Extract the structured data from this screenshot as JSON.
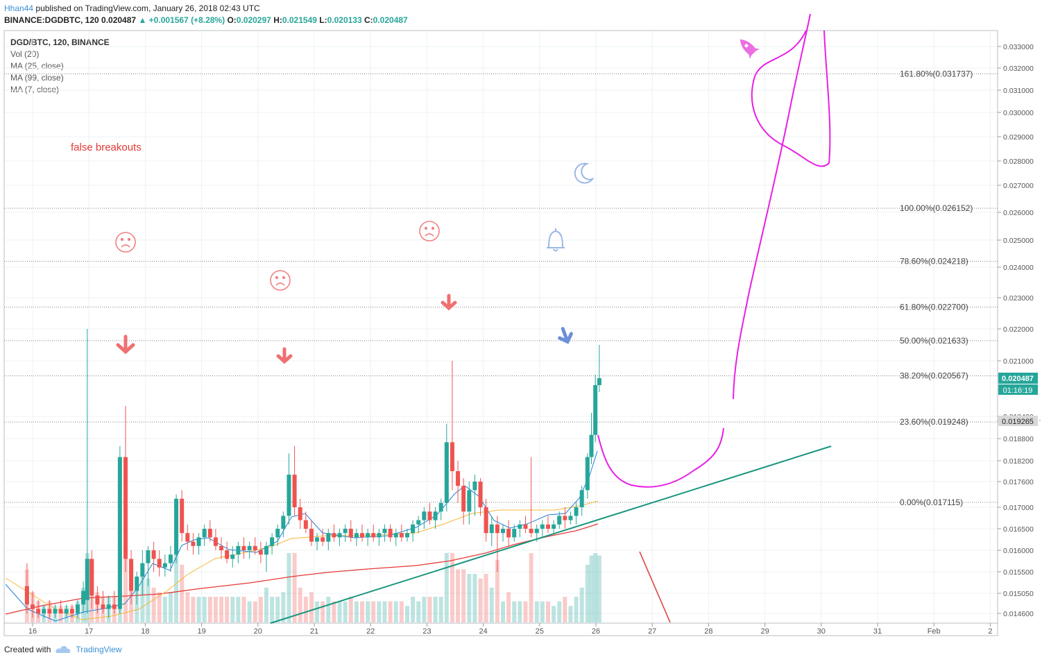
{
  "header": {
    "user": "Hhan44",
    "published": "published on TradingView.com, January 26, 2018 02:43 UTC",
    "symbol": "BINANCE:DGDBTC, 120",
    "last": "0.020487",
    "change": "+0.001567 (+8.28%)",
    "o_label": "O:",
    "o": "0.020297",
    "h_label": "H:",
    "h": "0.021549",
    "l_label": "L:",
    "l": "0.020133",
    "c_label": "C:",
    "c": "0.020487"
  },
  "legend": {
    "symbol": "DGD/BTC, 120, BINANCE",
    "items": [
      "Vol (20)",
      "MA (25, close)",
      "MA (99, close)",
      "MA (7, close)"
    ]
  },
  "footer": {
    "created": "Created with",
    "brand": "TradingView"
  },
  "colors": {
    "up": "#26a69a",
    "down": "#ef5350",
    "fib": "#7f7f7f",
    "drawing": "#e91ee6",
    "trend": "#17957d"
  },
  "chart_data": {
    "type": "candlestick",
    "x_ticks": [
      "16",
      "17",
      "18",
      "19",
      "20",
      "21",
      "22",
      "23",
      "24",
      "25",
      "26",
      "27",
      "28",
      "29",
      "30",
      "31",
      "Feb",
      "2"
    ],
    "y_ticks": [
      "0.033000",
      "0.032000",
      "0.031000",
      "0.030000",
      "0.029000",
      "0.028000",
      "0.027000",
      "0.026000",
      "0.025000",
      "0.024000",
      "0.023000",
      "0.022000",
      "0.021000",
      "0.019400",
      "0.018800",
      "0.018200",
      "0.017600",
      "0.017000",
      "0.016500",
      "0.016000",
      "0.015500",
      "0.015050",
      "0.014600"
    ],
    "price_label": "0.020487",
    "countdown_label": "01:16:19",
    "level_label": "0.019265",
    "fib_levels": [
      {
        "label": "161.80%(0.031737)",
        "value": 0.031737
      },
      {
        "label": "100.00%(0.026152)",
        "value": 0.026152
      },
      {
        "label": "78.60%(0.024218)",
        "value": 0.024218
      },
      {
        "label": "61.80%(0.022700)",
        "value": 0.0227
      },
      {
        "label": "50.00%(0.021633)",
        "value": 0.021633
      },
      {
        "label": "38.20%(0.020567)",
        "value": 0.020567
      },
      {
        "label": "23.60%(0.019248)",
        "value": 0.019248
      },
      {
        "label": "0.00%(0.017115)",
        "value": 0.017115
      }
    ],
    "annotations": [
      "false breakouts"
    ],
    "candles": [
      {
        "d": 15.9,
        "o": 0.0152,
        "h": 0.0157,
        "l": 0.0146,
        "c": 0.0148
      },
      {
        "d": 16.0,
        "o": 0.0148,
        "h": 0.0151,
        "l": 0.0145,
        "c": 0.0147
      },
      {
        "d": 16.1,
        "o": 0.0147,
        "h": 0.0149,
        "l": 0.0145,
        "c": 0.0146
      },
      {
        "d": 16.2,
        "o": 0.0146,
        "h": 0.0148,
        "l": 0.0145,
        "c": 0.0147
      },
      {
        "d": 16.3,
        "o": 0.0147,
        "h": 0.0149,
        "l": 0.0145,
        "c": 0.0146
      },
      {
        "d": 16.4,
        "o": 0.0146,
        "h": 0.0148,
        "l": 0.0145,
        "c": 0.0147
      },
      {
        "d": 16.5,
        "o": 0.0147,
        "h": 0.0149,
        "l": 0.0146,
        "c": 0.0146
      },
      {
        "d": 16.6,
        "o": 0.0146,
        "h": 0.0148,
        "l": 0.0145,
        "c": 0.0147
      },
      {
        "d": 16.7,
        "o": 0.0147,
        "h": 0.0148,
        "l": 0.0145,
        "c": 0.0146
      },
      {
        "d": 16.8,
        "o": 0.0146,
        "h": 0.0149,
        "l": 0.0145,
        "c": 0.0148
      },
      {
        "d": 16.9,
        "o": 0.0148,
        "h": 0.0153,
        "l": 0.0146,
        "c": 0.0151
      },
      {
        "d": 16.97,
        "o": 0.0149,
        "h": 0.022,
        "l": 0.0146,
        "c": 0.0158
      },
      {
        "d": 17.05,
        "o": 0.0158,
        "h": 0.016,
        "l": 0.0147,
        "c": 0.015
      },
      {
        "d": 17.15,
        "o": 0.015,
        "h": 0.0152,
        "l": 0.0146,
        "c": 0.0148
      },
      {
        "d": 17.25,
        "o": 0.0148,
        "h": 0.0151,
        "l": 0.0146,
        "c": 0.0147
      },
      {
        "d": 17.35,
        "o": 0.0147,
        "h": 0.015,
        "l": 0.0145,
        "c": 0.0148
      },
      {
        "d": 17.45,
        "o": 0.0148,
        "h": 0.0151,
        "l": 0.0146,
        "c": 0.0147
      },
      {
        "d": 17.55,
        "o": 0.0147,
        "h": 0.0186,
        "l": 0.0146,
        "c": 0.0183
      },
      {
        "d": 17.65,
        "o": 0.0183,
        "h": 0.0197,
        "l": 0.0155,
        "c": 0.0158
      },
      {
        "d": 17.75,
        "o": 0.0158,
        "h": 0.016,
        "l": 0.0148,
        "c": 0.0151
      },
      {
        "d": 17.85,
        "o": 0.0151,
        "h": 0.0155,
        "l": 0.0148,
        "c": 0.0154
      },
      {
        "d": 17.95,
        "o": 0.0154,
        "h": 0.016,
        "l": 0.015,
        "c": 0.0157
      },
      {
        "d": 18.05,
        "o": 0.0157,
        "h": 0.0161,
        "l": 0.0152,
        "c": 0.016
      },
      {
        "d": 18.15,
        "o": 0.016,
        "h": 0.0162,
        "l": 0.0155,
        "c": 0.0158
      },
      {
        "d": 18.25,
        "o": 0.0158,
        "h": 0.016,
        "l": 0.0154,
        "c": 0.0156
      },
      {
        "d": 18.35,
        "o": 0.0156,
        "h": 0.0159,
        "l": 0.0154,
        "c": 0.0157
      },
      {
        "d": 18.45,
        "o": 0.0157,
        "h": 0.0161,
        "l": 0.0155,
        "c": 0.0159
      },
      {
        "d": 18.55,
        "o": 0.0159,
        "h": 0.0173,
        "l": 0.0157,
        "c": 0.0172
      },
      {
        "d": 18.65,
        "o": 0.0172,
        "h": 0.0174,
        "l": 0.0162,
        "c": 0.0164
      },
      {
        "d": 18.75,
        "o": 0.0164,
        "h": 0.0166,
        "l": 0.016,
        "c": 0.0162
      },
      {
        "d": 18.85,
        "o": 0.0162,
        "h": 0.0164,
        "l": 0.0159,
        "c": 0.0161
      },
      {
        "d": 18.95,
        "o": 0.0161,
        "h": 0.0164,
        "l": 0.0159,
        "c": 0.0163
      },
      {
        "d": 19.05,
        "o": 0.0163,
        "h": 0.0166,
        "l": 0.0161,
        "c": 0.0165
      },
      {
        "d": 19.15,
        "o": 0.0165,
        "h": 0.0167,
        "l": 0.0162,
        "c": 0.0163
      },
      {
        "d": 19.25,
        "o": 0.0163,
        "h": 0.0165,
        "l": 0.016,
        "c": 0.0161
      },
      {
        "d": 19.35,
        "o": 0.0161,
        "h": 0.0163,
        "l": 0.0158,
        "c": 0.016
      },
      {
        "d": 19.45,
        "o": 0.016,
        "h": 0.0162,
        "l": 0.0157,
        "c": 0.0158
      },
      {
        "d": 19.55,
        "o": 0.0158,
        "h": 0.0161,
        "l": 0.0156,
        "c": 0.0159
      },
      {
        "d": 19.65,
        "o": 0.0159,
        "h": 0.0162,
        "l": 0.0157,
        "c": 0.0161
      },
      {
        "d": 19.75,
        "o": 0.0161,
        "h": 0.0163,
        "l": 0.0158,
        "c": 0.016
      },
      {
        "d": 19.85,
        "o": 0.016,
        "h": 0.0162,
        "l": 0.0158,
        "c": 0.0161
      },
      {
        "d": 19.95,
        "o": 0.0161,
        "h": 0.0163,
        "l": 0.0159,
        "c": 0.016
      },
      {
        "d": 20.05,
        "o": 0.016,
        "h": 0.0162,
        "l": 0.0157,
        "c": 0.0159
      },
      {
        "d": 20.15,
        "o": 0.0159,
        "h": 0.0162,
        "l": 0.0155,
        "c": 0.0161
      },
      {
        "d": 20.25,
        "o": 0.0161,
        "h": 0.0164,
        "l": 0.0159,
        "c": 0.0163
      },
      {
        "d": 20.35,
        "o": 0.0163,
        "h": 0.0166,
        "l": 0.0161,
        "c": 0.0165
      },
      {
        "d": 20.45,
        "o": 0.0165,
        "h": 0.0169,
        "l": 0.0163,
        "c": 0.0168
      },
      {
        "d": 20.55,
        "o": 0.0168,
        "h": 0.0184,
        "l": 0.0166,
        "c": 0.0178
      },
      {
        "d": 20.65,
        "o": 0.0178,
        "h": 0.0186,
        "l": 0.0168,
        "c": 0.017
      },
      {
        "d": 20.75,
        "o": 0.017,
        "h": 0.0172,
        "l": 0.0165,
        "c": 0.0167
      },
      {
        "d": 20.85,
        "o": 0.0167,
        "h": 0.0169,
        "l": 0.0164,
        "c": 0.0165
      },
      {
        "d": 20.95,
        "o": 0.0165,
        "h": 0.0167,
        "l": 0.0161,
        "c": 0.0162
      },
      {
        "d": 21.05,
        "o": 0.0162,
        "h": 0.0164,
        "l": 0.016,
        "c": 0.0163
      },
      {
        "d": 21.15,
        "o": 0.0163,
        "h": 0.0165,
        "l": 0.0161,
        "c": 0.0162
      },
      {
        "d": 21.25,
        "o": 0.0162,
        "h": 0.0165,
        "l": 0.016,
        "c": 0.0164
      },
      {
        "d": 21.35,
        "o": 0.0164,
        "h": 0.0166,
        "l": 0.0162,
        "c": 0.0163
      },
      {
        "d": 21.45,
        "o": 0.0163,
        "h": 0.0165,
        "l": 0.0161,
        "c": 0.0164
      },
      {
        "d": 21.55,
        "o": 0.0164,
        "h": 0.0166,
        "l": 0.0162,
        "c": 0.0165
      },
      {
        "d": 21.65,
        "o": 0.0165,
        "h": 0.0167,
        "l": 0.0162,
        "c": 0.0163
      },
      {
        "d": 21.75,
        "o": 0.0163,
        "h": 0.0165,
        "l": 0.0161,
        "c": 0.0164
      },
      {
        "d": 21.85,
        "o": 0.0164,
        "h": 0.0166,
        "l": 0.0162,
        "c": 0.0163
      },
      {
        "d": 21.95,
        "o": 0.0163,
        "h": 0.0165,
        "l": 0.0161,
        "c": 0.0164
      },
      {
        "d": 22.05,
        "o": 0.0164,
        "h": 0.0166,
        "l": 0.0162,
        "c": 0.0163
      },
      {
        "d": 22.15,
        "o": 0.0163,
        "h": 0.0165,
        "l": 0.0161,
        "c": 0.0164
      },
      {
        "d": 22.25,
        "o": 0.0164,
        "h": 0.0166,
        "l": 0.0162,
        "c": 0.0165
      },
      {
        "d": 22.35,
        "o": 0.0165,
        "h": 0.0166,
        "l": 0.0162,
        "c": 0.0163
      },
      {
        "d": 22.45,
        "o": 0.0163,
        "h": 0.0165,
        "l": 0.0161,
        "c": 0.0164
      },
      {
        "d": 22.55,
        "o": 0.0164,
        "h": 0.0166,
        "l": 0.0162,
        "c": 0.0163
      },
      {
        "d": 22.65,
        "o": 0.0163,
        "h": 0.0165,
        "l": 0.0162,
        "c": 0.0164
      },
      {
        "d": 22.75,
        "o": 0.0164,
        "h": 0.0167,
        "l": 0.0162,
        "c": 0.0166
      },
      {
        "d": 22.85,
        "o": 0.0166,
        "h": 0.0168,
        "l": 0.0164,
        "c": 0.0167
      },
      {
        "d": 22.95,
        "o": 0.0167,
        "h": 0.017,
        "l": 0.0165,
        "c": 0.0169
      },
      {
        "d": 23.05,
        "o": 0.0169,
        "h": 0.0171,
        "l": 0.0166,
        "c": 0.0167
      },
      {
        "d": 23.15,
        "o": 0.0167,
        "h": 0.017,
        "l": 0.0165,
        "c": 0.0169
      },
      {
        "d": 23.25,
        "o": 0.0169,
        "h": 0.0172,
        "l": 0.0167,
        "c": 0.0171
      },
      {
        "d": 23.35,
        "o": 0.0171,
        "h": 0.0192,
        "l": 0.0169,
        "c": 0.0187
      },
      {
        "d": 23.45,
        "o": 0.0187,
        "h": 0.021,
        "l": 0.0174,
        "c": 0.0179
      },
      {
        "d": 23.55,
        "o": 0.0179,
        "h": 0.0182,
        "l": 0.0171,
        "c": 0.0175
      },
      {
        "d": 23.65,
        "o": 0.0175,
        "h": 0.0177,
        "l": 0.0166,
        "c": 0.0169
      },
      {
        "d": 23.75,
        "o": 0.0169,
        "h": 0.0176,
        "l": 0.0166,
        "c": 0.0174
      },
      {
        "d": 23.85,
        "o": 0.0174,
        "h": 0.0178,
        "l": 0.0168,
        "c": 0.0176
      },
      {
        "d": 23.95,
        "o": 0.0176,
        "h": 0.0177,
        "l": 0.0168,
        "c": 0.017
      },
      {
        "d": 24.05,
        "o": 0.017,
        "h": 0.0172,
        "l": 0.0162,
        "c": 0.0164
      },
      {
        "d": 24.15,
        "o": 0.0164,
        "h": 0.0168,
        "l": 0.0161,
        "c": 0.0166
      },
      {
        "d": 24.25,
        "o": 0.0166,
        "h": 0.0168,
        "l": 0.0155,
        "c": 0.0164
      },
      {
        "d": 24.35,
        "o": 0.0164,
        "h": 0.0166,
        "l": 0.0162,
        "c": 0.0165
      },
      {
        "d": 24.45,
        "o": 0.0165,
        "h": 0.0167,
        "l": 0.0161,
        "c": 0.0163
      },
      {
        "d": 24.55,
        "o": 0.0163,
        "h": 0.0166,
        "l": 0.0162,
        "c": 0.0165
      },
      {
        "d": 24.65,
        "o": 0.0165,
        "h": 0.0167,
        "l": 0.0163,
        "c": 0.0166
      },
      {
        "d": 24.75,
        "o": 0.0166,
        "h": 0.0168,
        "l": 0.0164,
        "c": 0.0165
      },
      {
        "d": 24.85,
        "o": 0.0165,
        "h": 0.0183,
        "l": 0.0163,
        "c": 0.0164
      },
      {
        "d": 24.95,
        "o": 0.0164,
        "h": 0.0166,
        "l": 0.0162,
        "c": 0.0165
      },
      {
        "d": 25.05,
        "o": 0.0165,
        "h": 0.0167,
        "l": 0.0163,
        "c": 0.0166
      },
      {
        "d": 25.15,
        "o": 0.0166,
        "h": 0.0168,
        "l": 0.0164,
        "c": 0.0165
      },
      {
        "d": 25.25,
        "o": 0.0165,
        "h": 0.0167,
        "l": 0.0164,
        "c": 0.0166
      },
      {
        "d": 25.35,
        "o": 0.0166,
        "h": 0.0169,
        "l": 0.0165,
        "c": 0.0168
      },
      {
        "d": 25.45,
        "o": 0.0168,
        "h": 0.017,
        "l": 0.0165,
        "c": 0.0167
      },
      {
        "d": 25.55,
        "o": 0.0167,
        "h": 0.0169,
        "l": 0.0166,
        "c": 0.0168
      },
      {
        "d": 25.65,
        "o": 0.0168,
        "h": 0.0171,
        "l": 0.0166,
        "c": 0.017
      },
      {
        "d": 25.75,
        "o": 0.017,
        "h": 0.0175,
        "l": 0.0168,
        "c": 0.0174
      },
      {
        "d": 25.85,
        "o": 0.0174,
        "h": 0.0184,
        "l": 0.0172,
        "c": 0.0183
      },
      {
        "d": 25.92,
        "o": 0.0183,
        "h": 0.0195,
        "l": 0.0181,
        "c": 0.0189
      },
      {
        "d": 25.99,
        "o": 0.0189,
        "h": 0.0206,
        "l": 0.0187,
        "c": 0.0203
      },
      {
        "d": 26.06,
        "o": 0.0203,
        "h": 0.0215,
        "l": 0.0201,
        "c": 0.0205
      }
    ]
  }
}
